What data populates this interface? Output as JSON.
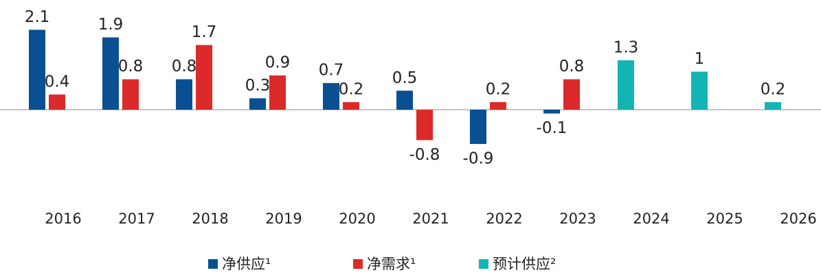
{
  "chart_data": {
    "type": "bar",
    "categories": [
      "2016",
      "2017",
      "2018",
      "2019",
      "2020",
      "2021",
      "2022",
      "2023",
      "2024",
      "2025",
      "2026"
    ],
    "series": [
      {
        "name": "净供应¹",
        "color": "#0a4f91",
        "values": [
          2.1,
          1.9,
          0.8,
          0.3,
          0.7,
          0.5,
          -0.9,
          -0.1,
          null,
          null,
          null
        ]
      },
      {
        "name": "净需求¹",
        "color": "#dc2a2a",
        "values": [
          0.4,
          0.8,
          1.7,
          0.9,
          0.2,
          -0.8,
          0.2,
          0.8,
          null,
          null,
          null
        ]
      },
      {
        "name": "预计供应²",
        "color": "#14b4b4",
        "values": [
          null,
          null,
          null,
          null,
          null,
          null,
          null,
          null,
          1.3,
          1.0,
          0.2
        ]
      }
    ],
    "ylim": [
      -2,
      2.5
    ]
  }
}
